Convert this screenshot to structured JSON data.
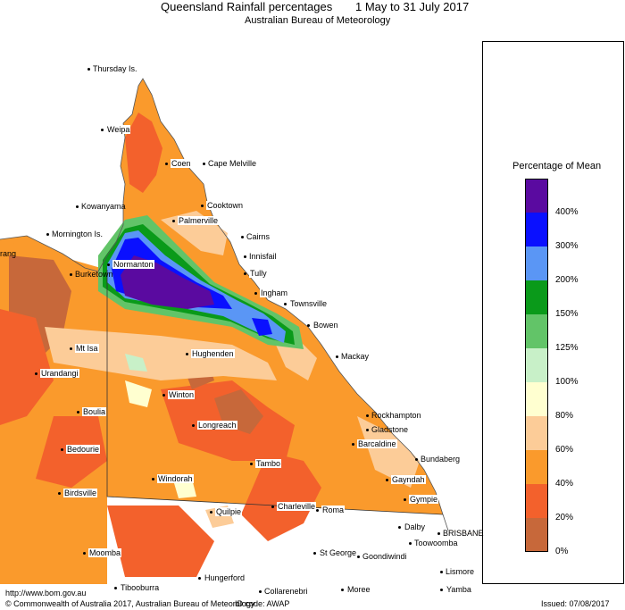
{
  "header": {
    "title": "Queensland Rainfall percentages",
    "date_range": "1 May to 31 July 2017",
    "subtitle": "Australian Bureau of Meteorology"
  },
  "legend": {
    "title": "Percentage of Mean",
    "bands": [
      {
        "label": "400%",
        "color": "#5a0aa0"
      },
      {
        "label": "300%",
        "color": "#0a10ff"
      },
      {
        "label": "200%",
        "color": "#5a96f5"
      },
      {
        "label": "150%",
        "color": "#0a9a1a"
      },
      {
        "label": "125%",
        "color": "#62c468"
      },
      {
        "label": "100%",
        "color": "#c8f0c8"
      },
      {
        "label": "80%",
        "color": "#ffffd0"
      },
      {
        "label": "60%",
        "color": "#fccc98"
      },
      {
        "label": "40%",
        "color": "#fa9a2c"
      },
      {
        "label": "20%",
        "color": "#f3612c"
      },
      {
        "label": "0%",
        "color": "#c7683a"
      }
    ]
  },
  "towns": [
    {
      "name": "Thursday Is."
    },
    {
      "name": "Weipa"
    },
    {
      "name": "Coen"
    },
    {
      "name": "Cape Melville"
    },
    {
      "name": "Kowanyama"
    },
    {
      "name": "Cooktown"
    },
    {
      "name": "Palmerville"
    },
    {
      "name": "Mornington Is."
    },
    {
      "name": "Cairns"
    },
    {
      "name": "Innisfail"
    },
    {
      "name": "Normanton"
    },
    {
      "name": "Burketown"
    },
    {
      "name": "Tully"
    },
    {
      "name": "Ingham"
    },
    {
      "name": "Townsville"
    },
    {
      "name": "Bowen"
    },
    {
      "name": "Mackay"
    },
    {
      "name": "Mt Isa"
    },
    {
      "name": "Hughenden"
    },
    {
      "name": "Urandangi"
    },
    {
      "name": "Winton"
    },
    {
      "name": "Boulia"
    },
    {
      "name": "Longreach"
    },
    {
      "name": "Rockhampton"
    },
    {
      "name": "Gladstone"
    },
    {
      "name": "Bedourie"
    },
    {
      "name": "Barcaldine"
    },
    {
      "name": "Bundaberg"
    },
    {
      "name": "Tambo"
    },
    {
      "name": "Windorah"
    },
    {
      "name": "Gayndah"
    },
    {
      "name": "Birdsville"
    },
    {
      "name": "Gympie"
    },
    {
      "name": "Charleville"
    },
    {
      "name": "Quilpie"
    },
    {
      "name": "Roma"
    },
    {
      "name": "BRISBANE"
    },
    {
      "name": "Dalby"
    },
    {
      "name": "Toowoomba"
    },
    {
      "name": "Moomba"
    },
    {
      "name": "St George"
    },
    {
      "name": "Goondiwindi"
    },
    {
      "name": "Hungerford"
    },
    {
      "name": "Lismore"
    },
    {
      "name": "Tibooburra"
    },
    {
      "name": "Collarenebri"
    },
    {
      "name": "Moree"
    },
    {
      "name": "Yamba"
    },
    {
      "name": "rang"
    }
  ],
  "footer": {
    "url": "http://www.bom.gov.au",
    "copyright": "© Commonwealth of Australia 2017, Australian Bureau of Meteorology",
    "id_code": "ID code: AWAP",
    "issued": "Issued: 07/08/2017"
  }
}
